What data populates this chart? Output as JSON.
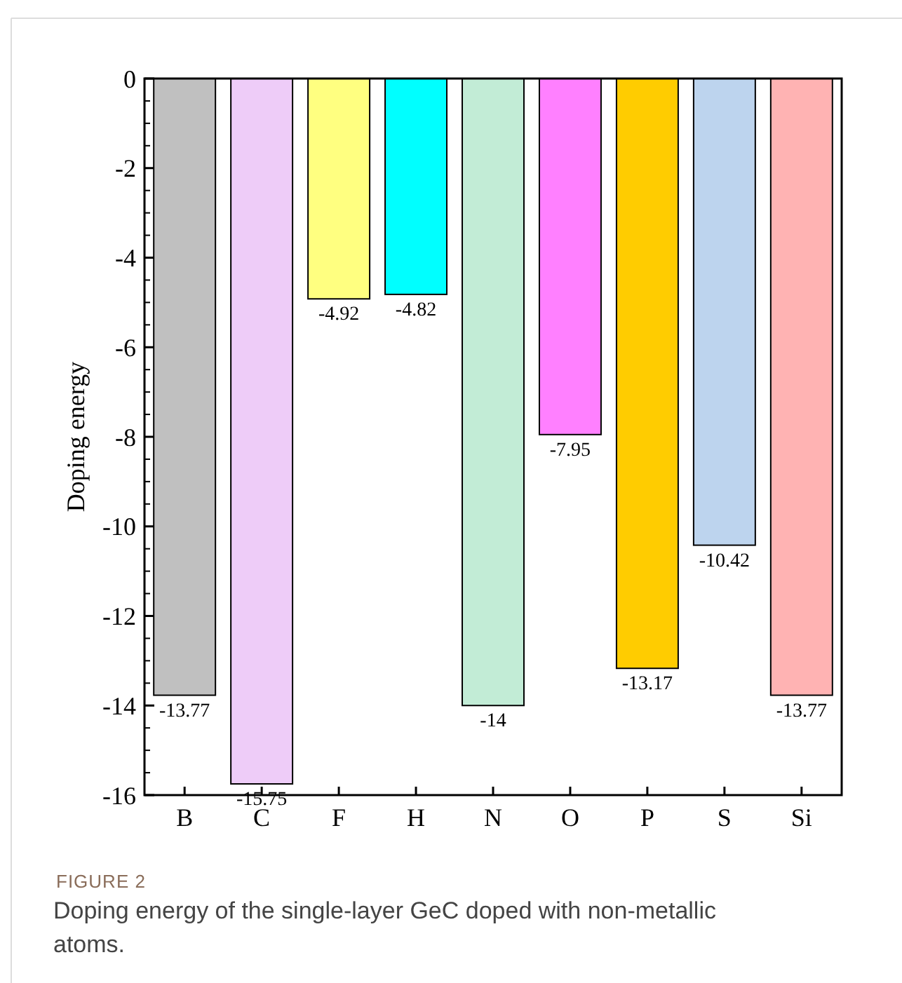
{
  "chart_data": {
    "type": "bar",
    "ylabel": "Doping energy",
    "categories": [
      "B",
      "C",
      "F",
      "H",
      "N",
      "O",
      "P",
      "S",
      "Si"
    ],
    "values": [
      -13.77,
      -15.75,
      -4.92,
      -4.82,
      -14,
      -7.95,
      -13.17,
      -10.42,
      -13.77
    ],
    "colors": [
      "#c0c0c0",
      "#eeccf8",
      "#ffff80",
      "#00ffff",
      "#c2ecd6",
      "#ff80ff",
      "#ffcc00",
      "#bdd4ee",
      "#ffb3b3"
    ],
    "ylim": [
      -16,
      0
    ],
    "yticks": [
      -16,
      -14,
      -12,
      -10,
      -8,
      -6,
      -4,
      -2,
      0
    ],
    "grid": false,
    "data_labels": true,
    "annotations": [
      "FIGURE 2",
      "Doping energy of the single-layer GeC doped with non-metallic atoms."
    ]
  }
}
